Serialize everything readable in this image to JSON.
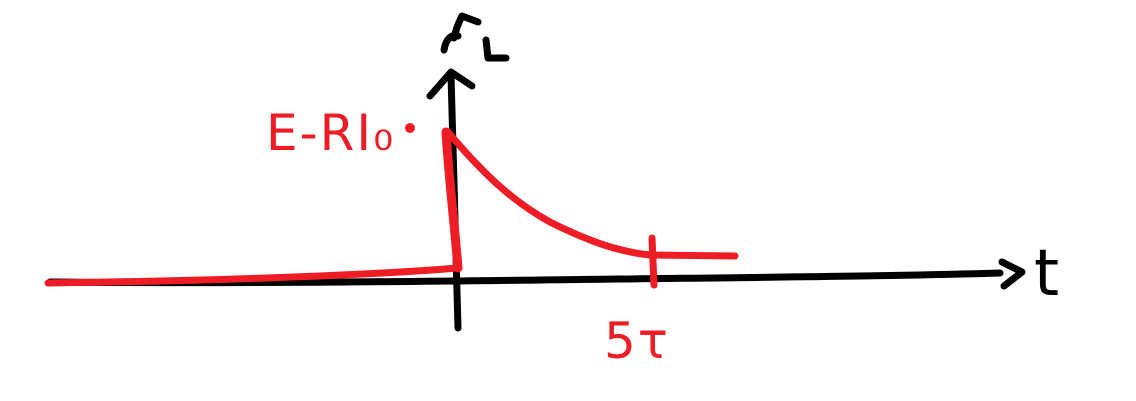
{
  "colors": {
    "axis": "#000000",
    "trace": "#ee1c24"
  },
  "icons": {
    "y_axis_symbol": "hand-drawn-current-symbol-icon"
  },
  "axis": {
    "x_label": "t"
  },
  "annotations": {
    "peak_label": "E-RI₀",
    "time_marker_label": "5τ"
  }
}
